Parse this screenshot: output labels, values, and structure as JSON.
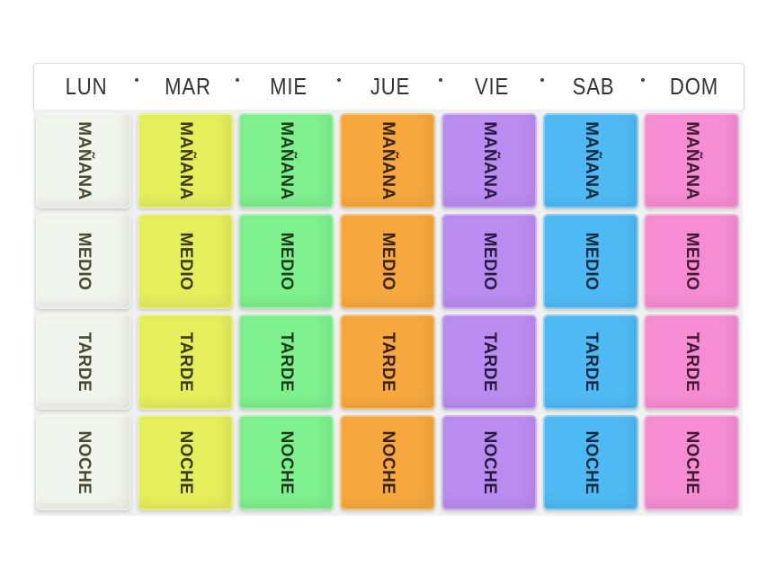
{
  "days": [
    "LUN",
    "MAR",
    "MIE",
    "JUE",
    "VIE",
    "SAB",
    "DOM"
  ],
  "slots": [
    "MAÑANA",
    "MEDIO",
    "TARDE",
    "NOCHE"
  ],
  "colors": [
    "#f2f4ee",
    "#e6ee5c",
    "#7ef08e",
    "#f6a83e",
    "#bb8cf0",
    "#4fb9f4",
    "#f68cd2"
  ],
  "text_colors": [
    "#4a4a30",
    "#3a3a10",
    "#1d3a20",
    "#3a2208",
    "#2a1840",
    "#0d2a40",
    "#401a30"
  ]
}
